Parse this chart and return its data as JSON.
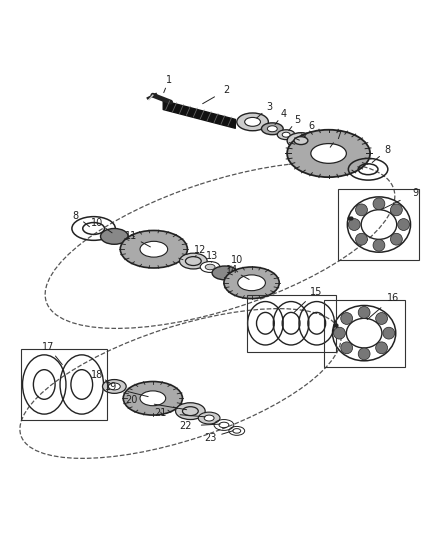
{
  "bg_color": "#ffffff",
  "figsize": [
    4.38,
    5.33
  ],
  "dpi": 100,
  "color_dark": "#222222",
  "color_mid": "#666666",
  "color_gray": "#999999",
  "color_lgray": "#cccccc",
  "color_box": "#333333"
}
